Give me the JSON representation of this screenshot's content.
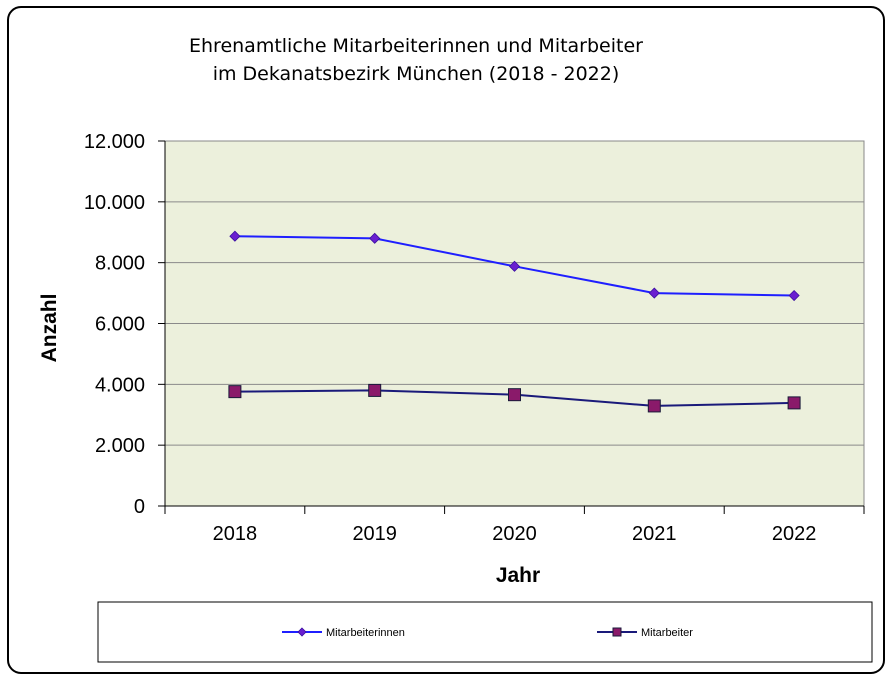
{
  "chart_data": {
    "type": "line",
    "title_lines": [
      "Ehrenamtliche Mitarbeiterinnen und Mitarbeiter",
      "im Dekanatsbezirk München (2018 - 2022)"
    ],
    "xlabel": "Jahr",
    "ylabel": "Anzahl",
    "categories": [
      "2018",
      "2019",
      "2020",
      "2021",
      "2022"
    ],
    "y_ticks": [
      "0",
      "2.000",
      "4.000",
      "6.000",
      "8.000",
      "10.000",
      "12.000"
    ],
    "ylim": [
      0,
      12000
    ],
    "grid": true,
    "legend_position": "bottom",
    "plot_background": "#ecf0dc",
    "series": [
      {
        "name": "Mitarbeiterinnen",
        "values": [
          8870,
          8800,
          7880,
          7000,
          6920
        ],
        "color": "#1f1fff",
        "marker": "diamond",
        "marker_color": "#6a1fd0"
      },
      {
        "name": "Mitarbeiter",
        "values": [
          3760,
          3800,
          3660,
          3290,
          3390
        ],
        "color": "#1a1a7a",
        "marker": "square",
        "marker_color": "#8a1a6a"
      }
    ]
  }
}
